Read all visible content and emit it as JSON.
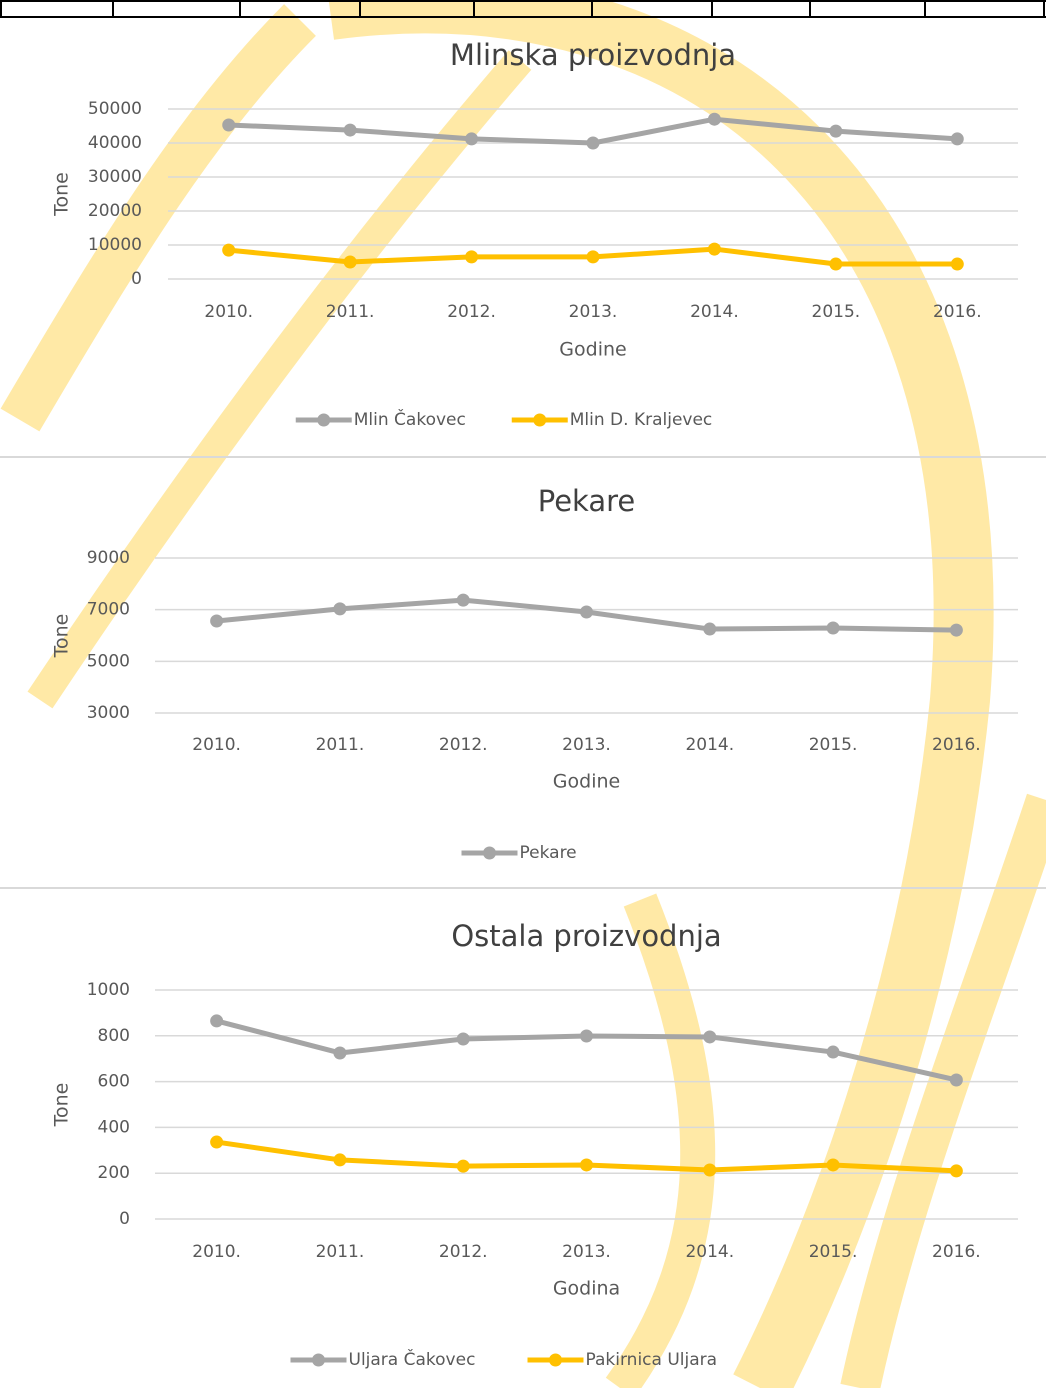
{
  "chart_data": [
    {
      "type": "line",
      "title": "Mlinska proizvodnja",
      "y_label": "Tone",
      "x_label": "Godine",
      "categories": [
        "2010.",
        "2011.",
        "2012.",
        "2013.",
        "2014.",
        "2015.",
        "2016."
      ],
      "series": [
        {
          "name": "Mlin Čakovec",
          "color": "#a5a5a5",
          "values": [
            45300,
            43800,
            41200,
            40000,
            47000,
            43500,
            41200
          ]
        },
        {
          "name": "Mlin D. Kraljevec",
          "color": "#ffc000",
          "values": [
            8500,
            5000,
            6500,
            6500,
            8800,
            4400,
            4400
          ]
        }
      ],
      "ylim": [
        0,
        50000
      ],
      "yticks": [
        0,
        10000,
        20000,
        30000,
        40000,
        50000
      ],
      "grid": true,
      "legend": "bottom"
    },
    {
      "type": "line",
      "title": "Pekare",
      "y_label": "Tone",
      "x_label": "Godine",
      "categories": [
        "2010.",
        "2011.",
        "2012.",
        "2013.",
        "2014.",
        "2015.",
        "2016."
      ],
      "series": [
        {
          "name": "Pekare",
          "color": "#a5a5a5",
          "values": [
            6560,
            7030,
            7370,
            6910,
            6250,
            6290,
            6210
          ]
        }
      ],
      "ylim": [
        3000,
        9000
      ],
      "yticks": [
        3000,
        5000,
        7000,
        9000
      ],
      "grid": true,
      "legend": "bottom"
    },
    {
      "type": "line",
      "title": "Ostala proizvodnja",
      "y_label": "Tone",
      "x_label": "Godina",
      "categories": [
        "2010.",
        "2011.",
        "2012.",
        "2013.",
        "2014.",
        "2015.",
        "2016."
      ],
      "series": [
        {
          "name": "Uljara Čakovec",
          "color": "#a5a5a5",
          "values": [
            865,
            725,
            786,
            799,
            795,
            729,
            607
          ]
        },
        {
          "name": "Pakirnica Uljara",
          "color": "#ffc000",
          "values": [
            336,
            258,
            231,
            236,
            214,
            236,
            210
          ]
        }
      ],
      "ylim": [
        0,
        1000
      ],
      "yticks": [
        0,
        200,
        400,
        600,
        800,
        1000
      ],
      "grid": true,
      "legend": "bottom"
    }
  ]
}
